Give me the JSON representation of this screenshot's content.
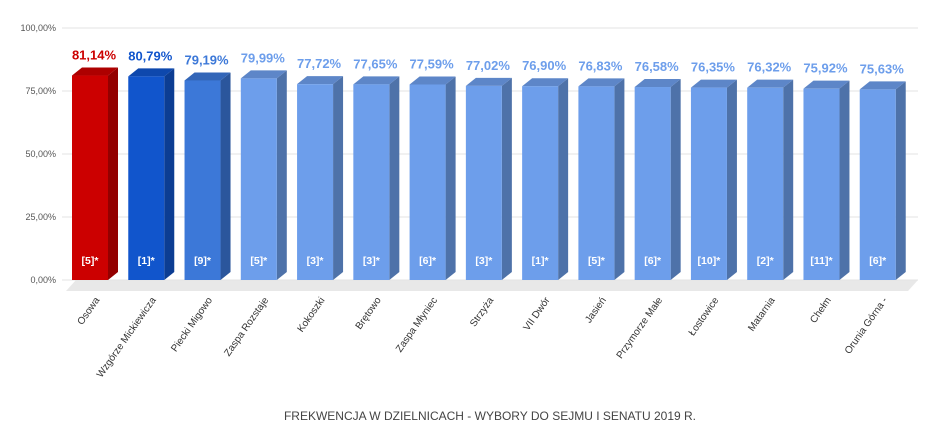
{
  "chart_data": {
    "type": "bar",
    "title": "FREKWENCJA W DZIELNICACH - WYBORY DO SEJMU I SENATU 2019 R.",
    "categories": [
      "Osowa",
      "Wzgórze Mickiewicza",
      "Piecki Migowo",
      "Zaspa Rozstaje",
      "Kokoszki",
      "Brętowo",
      "Zaspa Młyniec",
      "Strzyża",
      "VII Dwór",
      "Jasień",
      "Przymorze Małe",
      "Łostowice",
      "Matarnia",
      "Chełm",
      "Orunia Górna -"
    ],
    "values": [
      81.14,
      80.79,
      79.19,
      79.99,
      77.72,
      77.65,
      77.59,
      77.02,
      76.9,
      76.83,
      76.58,
      76.35,
      76.32,
      75.92,
      75.63
    ],
    "value_labels": [
      "81,14%",
      "80,79%",
      "79,19%",
      "79,99%",
      "77,72%",
      "77,65%",
      "77,59%",
      "77,02%",
      "76,90%",
      "76,83%",
      "76,58%",
      "76,35%",
      "76,32%",
      "75,92%",
      "75,63%"
    ],
    "inner_labels": [
      "[5]*",
      "[1]*",
      "[9]*",
      "[5]*",
      "[3]*",
      "[3]*",
      "[6]*",
      "[3]*",
      "[1]*",
      "[5]*",
      "[6]*",
      "[10]*",
      "[2]*",
      "[11]*",
      "[6]*"
    ],
    "bar_colors": [
      "#cc0000",
      "#1155cc",
      "#3c78d8",
      "#6d9eeb",
      "#6d9eeb",
      "#6d9eeb",
      "#6d9eeb",
      "#6d9eeb",
      "#6d9eeb",
      "#6d9eeb",
      "#6d9eeb",
      "#6d9eeb",
      "#6d9eeb",
      "#6d9eeb",
      "#6d9eeb"
    ],
    "label_colors": [
      "#cc0000",
      "#1155cc",
      "#3c78d8",
      "#6d9eeb",
      "#6d9eeb",
      "#6d9eeb",
      "#6d9eeb",
      "#6d9eeb",
      "#6d9eeb",
      "#6d9eeb",
      "#6d9eeb",
      "#6d9eeb",
      "#6d9eeb",
      "#6d9eeb",
      "#6d9eeb"
    ],
    "yticks": [
      0,
      25,
      50,
      75,
      100
    ],
    "ytick_labels": [
      "0,00%",
      "25,00%",
      "50,00%",
      "75,00%",
      "100,00%"
    ],
    "ylim": [
      0,
      100
    ],
    "grid": true,
    "legend": "none"
  }
}
